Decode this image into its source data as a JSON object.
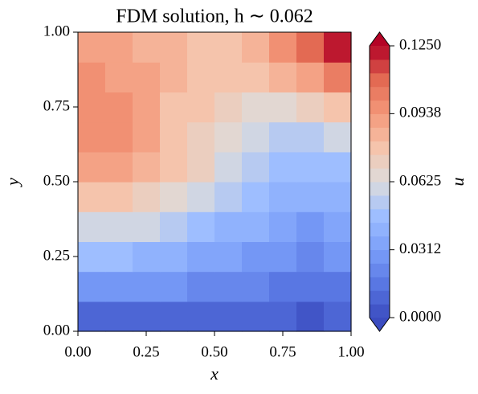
{
  "chart_data": {
    "type": "contour",
    "title": "FDM solution, h ∼ 0.062",
    "xlabel": "x",
    "ylabel": "y",
    "colorbar_label": "u",
    "xlim": [
      0,
      1
    ],
    "ylim": [
      0,
      1
    ],
    "xticks": [
      {
        "value": 0,
        "label": "0.00"
      },
      {
        "value": 0.25,
        "label": "0.25"
      },
      {
        "value": 0.5,
        "label": "0.50"
      },
      {
        "value": 0.75,
        "label": "0.75"
      },
      {
        "value": 1,
        "label": "1.00"
      }
    ],
    "yticks": [
      {
        "value": 0,
        "label": "0.00"
      },
      {
        "value": 0.25,
        "label": "0.25"
      },
      {
        "value": 0.5,
        "label": "0.50"
      },
      {
        "value": 0.75,
        "label": "0.75"
      },
      {
        "value": 1,
        "label": "1.00"
      }
    ],
    "colormap": "coolwarm",
    "clim": [
      0,
      0.125
    ],
    "cticks": [
      {
        "value": 0,
        "label": "0.0000"
      },
      {
        "value": 0.0312,
        "label": "0.0312"
      },
      {
        "value": 0.0625,
        "label": "0.0625"
      },
      {
        "value": 0.0938,
        "label": "0.0938"
      },
      {
        "value": 0.125,
        "label": "0.1250"
      }
    ],
    "x": [
      0.05,
      0.15,
      0.25,
      0.35,
      0.45,
      0.55,
      0.65,
      0.75,
      0.85,
      0.95
    ],
    "y": [
      0.05,
      0.15,
      0.25,
      0.35,
      0.45,
      0.55,
      0.65,
      0.75,
      0.85,
      0.95
    ],
    "z": [
      [
        0.012,
        0.011,
        0.01,
        0.01,
        0.01,
        0.009,
        0.008,
        0.007,
        0.006,
        0.008
      ],
      [
        0.03,
        0.029,
        0.027,
        0.025,
        0.024,
        0.022,
        0.02,
        0.017,
        0.015,
        0.018
      ],
      [
        0.045,
        0.044,
        0.042,
        0.039,
        0.036,
        0.033,
        0.03,
        0.026,
        0.024,
        0.027
      ],
      [
        0.06,
        0.059,
        0.057,
        0.053,
        0.048,
        0.043,
        0.038,
        0.032,
        0.03,
        0.033
      ],
      [
        0.078,
        0.076,
        0.073,
        0.068,
        0.061,
        0.054,
        0.047,
        0.04,
        0.038,
        0.04
      ],
      [
        0.092,
        0.089,
        0.083,
        0.076,
        0.069,
        0.062,
        0.054,
        0.047,
        0.045,
        0.048
      ],
      [
        0.098,
        0.095,
        0.088,
        0.08,
        0.073,
        0.066,
        0.06,
        0.056,
        0.056,
        0.06
      ],
      [
        0.099,
        0.096,
        0.089,
        0.081,
        0.075,
        0.07,
        0.067,
        0.068,
        0.072,
        0.08
      ],
      [
        0.095,
        0.093,
        0.088,
        0.082,
        0.078,
        0.075,
        0.076,
        0.082,
        0.092,
        0.105
      ],
      [
        0.09,
        0.09,
        0.087,
        0.083,
        0.08,
        0.08,
        0.085,
        0.095,
        0.11,
        0.12
      ]
    ]
  }
}
